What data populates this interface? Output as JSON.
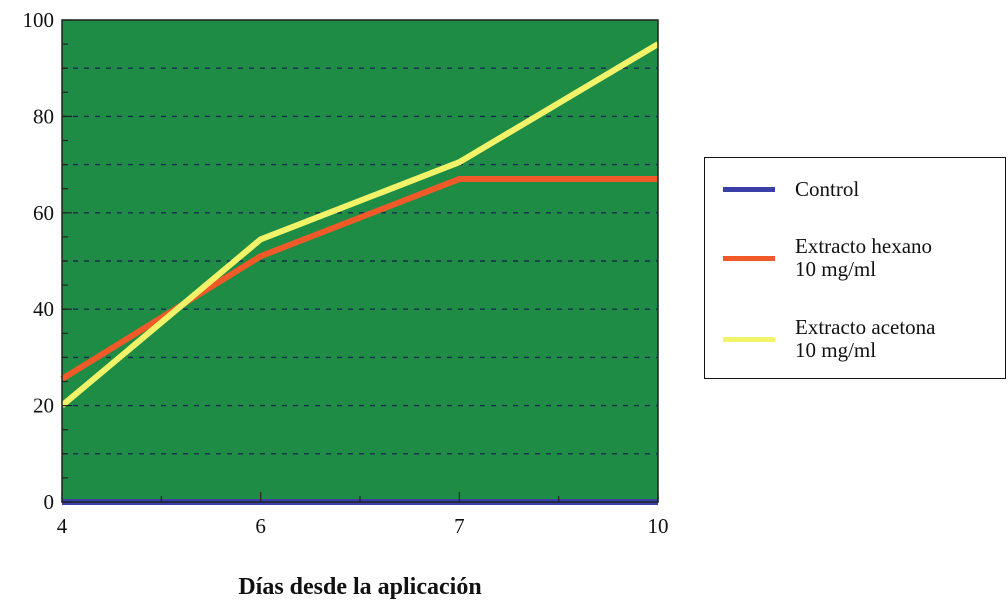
{
  "chart_data": {
    "type": "line",
    "xlabel": "Días desde la aplicación",
    "ylabel": "",
    "title": "",
    "categories": [
      "4",
      "6",
      "7",
      "10"
    ],
    "ylim": [
      0,
      100
    ],
    "yticks": [
      "0",
      "20",
      "40",
      "60",
      "80",
      "100"
    ],
    "grid": true,
    "legend_position": "right",
    "plot_background": "#1f8c45",
    "series": [
      {
        "name": "Control",
        "values": [
          0,
          0,
          0,
          0
        ],
        "color": "#3b3fa8"
      },
      {
        "name": "Extracto hexano 10 mg/ml",
        "line1": "Extracto hexano",
        "line2": "10 mg/ml",
        "values": [
          25.5,
          51,
          67,
          67
        ],
        "color": "#ef5a28"
      },
      {
        "name": "Extracto acetona 10 mg/ml",
        "line1": "Extracto acetona",
        "line2": "10 mg/ml",
        "values": [
          20,
          54.5,
          70.5,
          95
        ],
        "color": "#f3f36a"
      }
    ]
  }
}
